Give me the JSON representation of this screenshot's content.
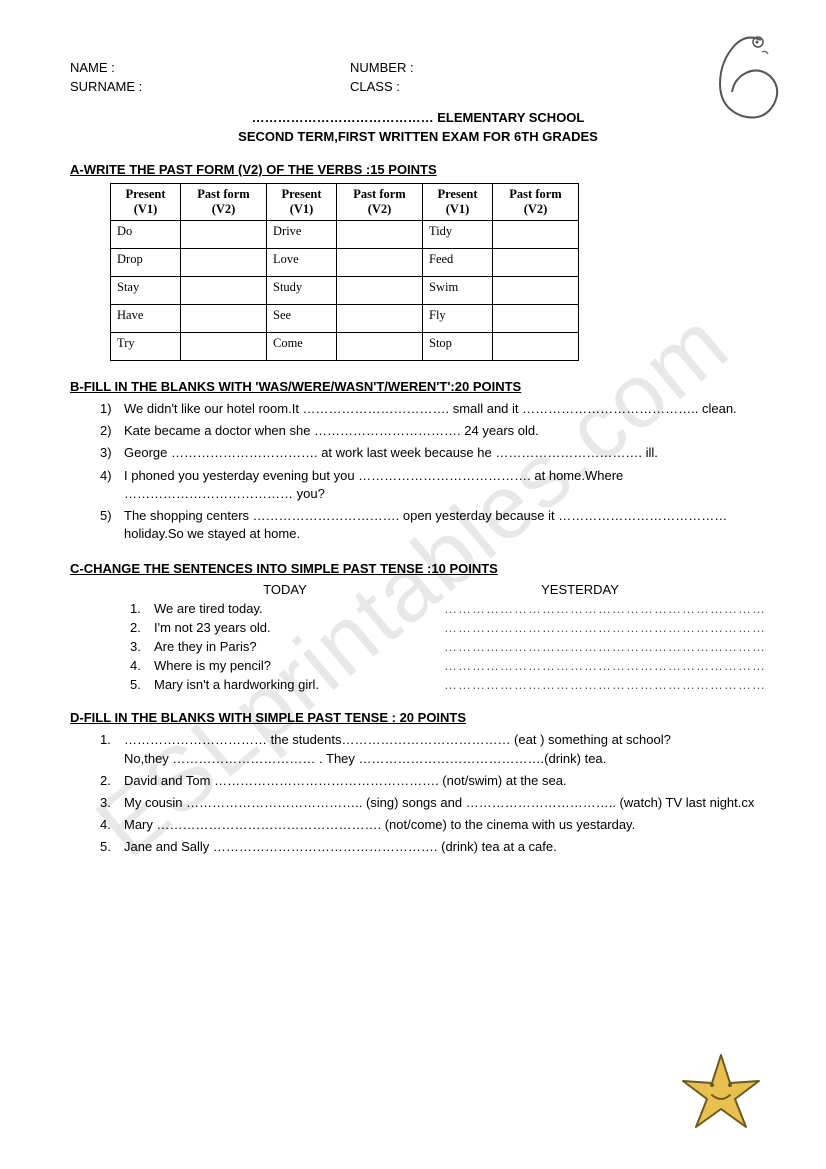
{
  "header": {
    "name_label": "NAME :",
    "number_label": "NUMBER :",
    "surname_label": "SURNAME :",
    "class_label": "CLASS :",
    "school_line": "…………………………………… ELEMENTARY SCHOOL",
    "exam_line": "SECOND TERM,FIRST WRITTEN EXAM FOR 6TH GRADES"
  },
  "sectionA": {
    "heading": "A-WRITE THE PAST FORM (V2) OF THE VERBS :15 POINTS",
    "col_present": "Present (V1)",
    "col_past": "Past form (V2)",
    "rows": [
      {
        "c1": "Do",
        "c2": "",
        "c3": "Drive",
        "c4": "",
        "c5": "Tidy",
        "c6": ""
      },
      {
        "c1": "Drop",
        "c2": "",
        "c3": "Love",
        "c4": "",
        "c5": "Feed",
        "c6": ""
      },
      {
        "c1": "Stay",
        "c2": "",
        "c3": "Study",
        "c4": "",
        "c5": "Swim",
        "c6": ""
      },
      {
        "c1": "Have",
        "c2": "",
        "c3": "See",
        "c4": "",
        "c5": "Fly",
        "c6": ""
      },
      {
        "c1": "Try",
        "c2": "",
        "c3": "Come",
        "c4": "",
        "c5": "Stop",
        "c6": ""
      }
    ]
  },
  "sectionB": {
    "heading": "B-FILL IN THE BLANKS WITH 'WAS/WERE/WASN'T/WEREN'T':20 POINTS",
    "items": [
      {
        "n": "1)",
        "t": "We didn't like our hotel room.It ……………………………. small and it ………………………………….. clean."
      },
      {
        "n": "2)",
        "t": "Kate became a doctor when she ……………………………. 24 years old."
      },
      {
        "n": "3)",
        "t": "George ……………………………. at work last week because he ……………………………. ill."
      },
      {
        "n": "4)",
        "t": "I phoned you yesterday evening but you …………………………………. at home.Where ………………………………… you?"
      },
      {
        "n": "5)",
        "t": "The shopping centers ……………………………. open yesterday because it ………………………………… holiday.So we stayed at home."
      }
    ]
  },
  "sectionC": {
    "heading": "C-CHANGE THE SENTENCES INTO SIMPLE PAST TENSE :10 POINTS",
    "col_today": "TODAY",
    "col_yesterday": "YESTERDAY",
    "items": [
      {
        "n": "1.",
        "t": "We  are tired today."
      },
      {
        "n": "2.",
        "t": "I'm not 23 years old."
      },
      {
        "n": "3.",
        "t": "Are they in Paris?"
      },
      {
        "n": "4.",
        "t": "Where is my pencil?"
      },
      {
        "n": "5.",
        "t": "Mary isn't a hardworking girl."
      }
    ],
    "dots": "…………………………………………………………………………."
  },
  "sectionD": {
    "heading": "D-FILL IN THE BLANKS WITH SIMPLE PAST TENSE : 20 POINTS",
    "items": [
      {
        "n": "1.",
        "t": "…………………………… the students………………………………… (eat ) something at school?\nNo,they …………………………… . They …………………………………….(drink) tea."
      },
      {
        "n": "2.",
        "t": "David and Tom ……………………………………………. (not/swim) at the sea."
      },
      {
        "n": "3.",
        "t": "My cousin ………………………………….. (sing) songs and …………………………….. (watch) TV last night.cx"
      },
      {
        "n": "4.",
        "t": "Mary ……………………………………………. (not/come) to the cinema with us yestarday."
      },
      {
        "n": "5.",
        "t": "Jane and Sally ……………………………………………. (drink) tea at a cafe."
      }
    ]
  },
  "watermark_text": "ESLprintables.com",
  "colors": {
    "text": "#000000",
    "background": "#ffffff",
    "watermark": "rgba(0,0,0,0.09)",
    "star_fill": "#e9c04f",
    "star_stroke": "#6b5a1f"
  }
}
